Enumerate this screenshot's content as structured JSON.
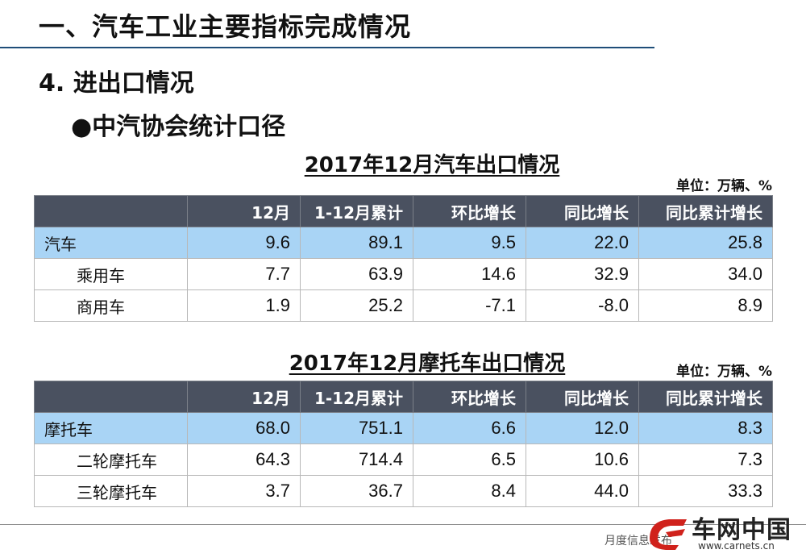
{
  "header": {
    "title": "一、汽车工业主要指标完成情况",
    "section": "4. 进出口情况",
    "subsection": "●中汽协会统计口径"
  },
  "tables": [
    {
      "title": "2017年12月汽车出口情况",
      "unit": "单位：万辆、%",
      "columns": [
        "",
        "12月",
        "1-12月累计",
        "环比增长",
        "同比增长",
        "同比累计增长"
      ],
      "rows": [
        {
          "label": "汽车",
          "values": [
            "9.6",
            "89.1",
            "9.5",
            "22.0",
            "25.8"
          ]
        },
        {
          "label": "乘用车",
          "values": [
            "7.7",
            "63.9",
            "14.6",
            "32.9",
            "34.0"
          ]
        },
        {
          "label": "商用车",
          "values": [
            "1.9",
            "25.2",
            "-7.1",
            "-8.0",
            "8.9"
          ]
        }
      ]
    },
    {
      "title": "2017年12月摩托车出口情况",
      "unit": "单位：万辆、%",
      "columns": [
        "",
        "12月",
        "1-12月累计",
        "环比增长",
        "同比增长",
        "同比累计增长"
      ],
      "rows": [
        {
          "label": "摩托车",
          "values": [
            "68.0",
            "751.1",
            "6.6",
            "12.0",
            "8.3"
          ]
        },
        {
          "label": "二轮摩托车",
          "values": [
            "64.3",
            "714.4",
            "6.5",
            "10.6",
            "7.3"
          ]
        },
        {
          "label": "三轮摩托车",
          "values": [
            "3.7",
            "36.7",
            "8.4",
            "44.0",
            "33.3"
          ]
        }
      ]
    }
  ],
  "footer": {
    "text": "月度信息发布",
    "logo_name": "车网中国",
    "logo_url": "www.carnets.cn"
  },
  "colors": {
    "header_bg": "#4a5160",
    "highlight_row": "#a9d4f5",
    "rule": "#1f4e79"
  }
}
